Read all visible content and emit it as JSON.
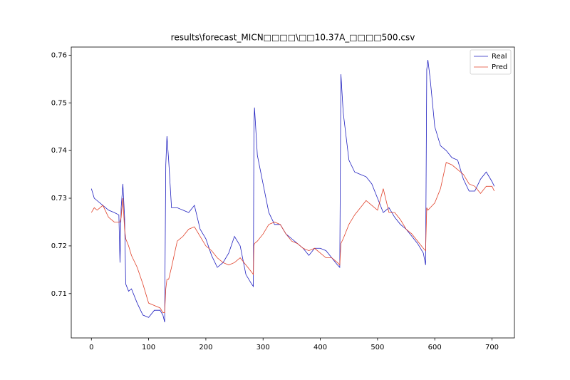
{
  "chart_data": {
    "type": "line",
    "title": "results\\forecast_MICN□□□□\\□□10.37A_□□□□500.csv",
    "x": [
      0,
      5,
      10,
      20,
      30,
      40,
      48,
      50,
      52,
      55,
      58,
      60,
      65,
      70,
      80,
      90,
      100,
      110,
      120,
      125,
      128,
      130,
      132,
      135,
      140,
      150,
      160,
      170,
      180,
      190,
      200,
      210,
      220,
      230,
      240,
      250,
      260,
      270,
      280,
      283,
      284,
      285,
      290,
      300,
      310,
      320,
      330,
      340,
      350,
      360,
      370,
      380,
      390,
      400,
      410,
      420,
      430,
      434,
      436,
      440,
      450,
      460,
      470,
      480,
      490,
      500,
      510,
      520,
      530,
      540,
      550,
      560,
      570,
      580,
      584,
      586,
      588,
      592,
      600,
      610,
      620,
      630,
      640,
      650,
      660,
      670,
      680,
      690,
      700,
      704
    ],
    "series": [
      {
        "name": "Real",
        "color": "#1f1fbf",
        "values": [
          0.732,
          0.73,
          0.7295,
          0.7285,
          0.7275,
          0.727,
          0.7265,
          0.7165,
          0.728,
          0.733,
          0.726,
          0.712,
          0.7105,
          0.711,
          0.708,
          0.7055,
          0.705,
          0.7065,
          0.7065,
          0.7055,
          0.704,
          0.737,
          0.743,
          0.738,
          0.728,
          0.728,
          0.7275,
          0.727,
          0.7285,
          0.7235,
          0.7215,
          0.718,
          0.7155,
          0.7165,
          0.7185,
          0.722,
          0.72,
          0.714,
          0.712,
          0.7115,
          0.745,
          0.749,
          0.739,
          0.733,
          0.727,
          0.7245,
          0.7245,
          0.7225,
          0.7215,
          0.7205,
          0.7195,
          0.718,
          0.7195,
          0.7195,
          0.719,
          0.7175,
          0.716,
          0.7155,
          0.756,
          0.748,
          0.738,
          0.7355,
          0.735,
          0.7345,
          0.733,
          0.73,
          0.727,
          0.728,
          0.726,
          0.7245,
          0.7235,
          0.722,
          0.7205,
          0.7185,
          0.716,
          0.757,
          0.759,
          0.755,
          0.745,
          0.741,
          0.74,
          0.7385,
          0.738,
          0.734,
          0.7315,
          0.7315,
          0.734,
          0.7355,
          0.7335,
          0.7325
        ]
      },
      {
        "name": "Pred",
        "color": "#e0412a",
        "values": [
          0.727,
          0.728,
          0.7275,
          0.7285,
          0.726,
          0.725,
          0.725,
          0.725,
          0.726,
          0.73,
          0.7235,
          0.7215,
          0.72,
          0.718,
          0.7155,
          0.712,
          0.708,
          0.7075,
          0.707,
          0.706,
          0.706,
          0.711,
          0.713,
          0.713,
          0.7155,
          0.721,
          0.722,
          0.7235,
          0.724,
          0.722,
          0.72,
          0.719,
          0.7175,
          0.7165,
          0.716,
          0.7165,
          0.7175,
          0.716,
          0.7145,
          0.714,
          0.72,
          0.7205,
          0.721,
          0.7225,
          0.7245,
          0.725,
          0.7245,
          0.7225,
          0.721,
          0.7205,
          0.7195,
          0.719,
          0.7195,
          0.7185,
          0.7175,
          0.7175,
          0.7165,
          0.716,
          0.7205,
          0.7215,
          0.7245,
          0.7265,
          0.728,
          0.7295,
          0.7285,
          0.7275,
          0.732,
          0.727,
          0.727,
          0.7255,
          0.7235,
          0.7225,
          0.721,
          0.7195,
          0.719,
          0.728,
          0.7275,
          0.728,
          0.729,
          0.732,
          0.7375,
          0.737,
          0.736,
          0.735,
          0.733,
          0.7325,
          0.731,
          0.7325,
          0.7325,
          0.7315
        ]
      }
    ],
    "xlim": [
      -35.2,
      739.2
    ],
    "xticks": [
      0,
      100,
      200,
      300,
      400,
      500,
      600,
      700
    ],
    "ylim": [
      0.7007,
      0.7617
    ],
    "yticks": [
      0.71,
      0.72,
      0.73,
      0.74,
      0.75,
      0.76
    ],
    "legend": "upper right"
  }
}
